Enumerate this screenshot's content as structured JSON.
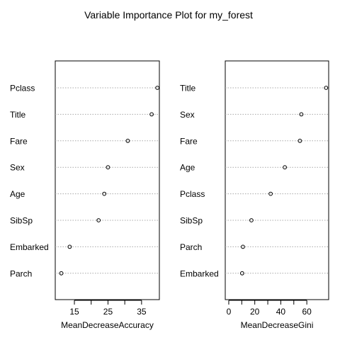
{
  "title": "Variable Importance Plot for my_forest",
  "chart_data": [
    {
      "type": "scatter",
      "subtype": "dotchart",
      "xlabel": "MeanDecreaseAccuracy",
      "xlim": [
        9.3,
        40.3
      ],
      "xticks": [
        15,
        25,
        35
      ],
      "categories": [
        "Pclass",
        "Title",
        "Fare",
        "Sex",
        "Age",
        "SibSp",
        "Embarked",
        "Parch"
      ],
      "values": [
        39.7,
        38.0,
        30.9,
        25.0,
        23.9,
        22.2,
        13.6,
        11.1
      ],
      "grid": "dotted horizontal lines per category"
    },
    {
      "type": "scatter",
      "subtype": "dotchart",
      "xlabel": "MeanDecreaseGini",
      "xlim": [
        -2.7,
        76.8
      ],
      "xticks": [
        0,
        20,
        40,
        60
      ],
      "categories": [
        "Title",
        "Sex",
        "Fare",
        "Age",
        "Pclass",
        "SibSp",
        "Parch",
        "Embarked"
      ],
      "values": [
        74.8,
        55.8,
        54.7,
        43.1,
        32.2,
        17.4,
        10.9,
        10.3
      ],
      "grid": "dotted horizontal lines per category"
    }
  ]
}
